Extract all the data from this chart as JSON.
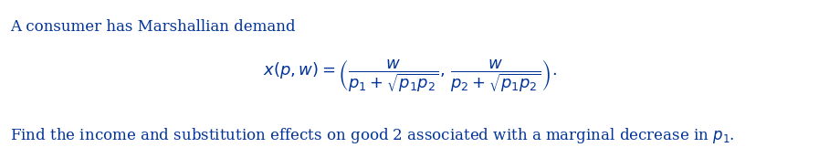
{
  "background_color": "#ffffff",
  "text_color": "#003399",
  "line1": "A consumer has Marshallian demand",
  "line1_fontsize": 12,
  "formula": "$x(p, w) = \\left(\\dfrac{w}{p_1 + \\sqrt{p_1 p_2}},\\, \\dfrac{w}{p_2 + \\sqrt{p_1 p_2}}\\right).$",
  "formula_fontsize": 13,
  "line3": "Find the income and substitution effects on good 2 associated with a marginal decrease in $p_1$.",
  "line3_fontsize": 12,
  "fig_width": 8.97,
  "fig_height": 1.73,
  "dpi": 100
}
